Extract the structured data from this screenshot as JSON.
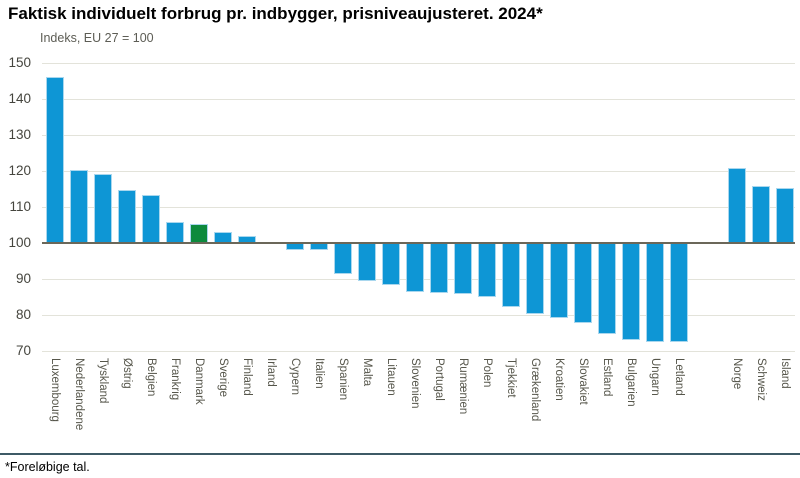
{
  "title": "Faktisk individuelt forbrug pr. indbygger, prisniveaujusteret. 2024*",
  "subtitle": "Indeks, EU 27 = 100",
  "footnote": "*Foreløbige tal.",
  "chart_data": {
    "type": "bar",
    "title": "Faktisk individuelt forbrug pr. indbygger, prisniveaujusteret. 2024*",
    "ylabel": "Indeks, EU 27 = 100",
    "ylim": [
      70,
      150
    ],
    "ytick_interval": 10,
    "baseline": 100,
    "grid": true,
    "categories": [
      "Luxembourg",
      "Nederlandene",
      "Tyskland",
      "Østrig",
      "Belgien",
      "Frankrig",
      "Danmark",
      "Sverige",
      "Finland",
      "Irland",
      "Cypern",
      "Italien",
      "Spanien",
      "Malta",
      "Litauen",
      "Slovenien",
      "Portugal",
      "Rumænien",
      "Polen",
      "Tjekkiet",
      "Grækenland",
      "Kroatien",
      "Slovakiet",
      "Estland",
      "Bulgarien",
      "Ungarn",
      "Letland",
      "Norge",
      "Schweiz",
      "Island"
    ],
    "values": [
      146,
      120.3,
      119.2,
      114.6,
      113.4,
      105.7,
      105.2,
      103.1,
      101.9,
      100,
      98,
      98,
      91.3,
      89.4,
      88.4,
      86.5,
      86.2,
      85.8,
      85,
      82.3,
      80.2,
      79.3,
      77.8,
      74.8,
      73.1,
      72.5,
      72.4,
      120.8,
      115.7,
      115.4
    ],
    "highlight_category": "Danmark",
    "group_break_after": "Letland",
    "colors": {
      "bar": "#0e96d5",
      "highlight": "#0d8a3d",
      "bar_border": "#a9d7ee",
      "gridline": "#e3e3da",
      "baseline_line": "#6b6759"
    }
  }
}
